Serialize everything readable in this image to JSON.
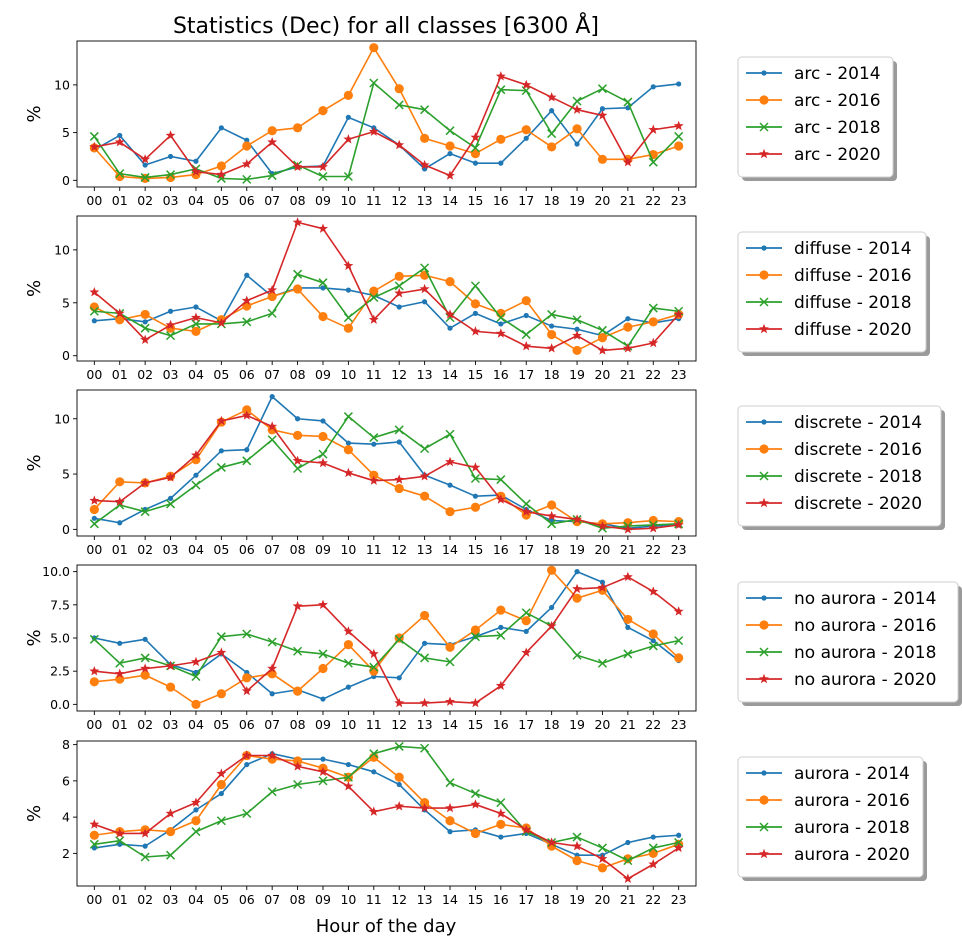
{
  "title": "Statistics (Dec) for all classes [6300 Å]",
  "xlabel": "Hour of the day",
  "colors": {
    "2014": "#1f77b4",
    "2016": "#ff7f0e",
    "2018": "#2ca02c",
    "2020": "#d62728"
  },
  "chart_data": [
    {
      "type": "line",
      "class": "arc",
      "ylabel": "%",
      "ylim": [
        -0.7,
        14.6
      ],
      "yticks": [
        {
          "v": 0,
          "label": "0"
        },
        {
          "v": 5,
          "label": "5"
        },
        {
          "v": 10,
          "label": "10"
        }
      ],
      "x": [
        "00",
        "01",
        "02",
        "03",
        "04",
        "05",
        "06",
        "07",
        "08",
        "09",
        "10",
        "11",
        "12",
        "13",
        "14",
        "15",
        "16",
        "17",
        "18",
        "19",
        "20",
        "21",
        "22",
        "23"
      ],
      "legend": "right",
      "series": [
        {
          "name": "arc - 2014",
          "year": "2014",
          "marker": "dot",
          "values": [
            3.2,
            4.7,
            1.6,
            2.5,
            2.0,
            5.5,
            4.2,
            0.7,
            1.4,
            1.5,
            6.6,
            5.5,
            3.7,
            1.2,
            2.8,
            1.8,
            1.8,
            4.4,
            7.3,
            3.8,
            7.5,
            7.6,
            9.8,
            10.1
          ]
        },
        {
          "name": "arc - 2016",
          "year": "2016",
          "marker": "circle",
          "values": [
            3.4,
            0.4,
            0.2,
            0.3,
            0.6,
            1.5,
            3.6,
            5.2,
            5.5,
            7.3,
            8.9,
            13.9,
            9.6,
            4.4,
            3.6,
            2.8,
            4.3,
            5.3,
            3.5,
            5.4,
            2.2,
            2.2,
            2.7,
            3.6
          ]
        },
        {
          "name": "arc - 2018",
          "year": "2018",
          "marker": "x",
          "values": [
            4.6,
            0.7,
            0.3,
            0.6,
            1.2,
            0.2,
            0.1,
            0.5,
            1.6,
            0.4,
            0.4,
            10.2,
            7.9,
            7.4,
            5.2,
            3.4,
            9.5,
            9.4,
            4.9,
            8.3,
            9.6,
            8.2,
            1.9,
            4.6
          ]
        },
        {
          "name": "arc - 2020",
          "year": "2020",
          "marker": "star",
          "values": [
            3.5,
            4.0,
            2.2,
            4.7,
            0.9,
            0.6,
            1.7,
            4.0,
            1.4,
            1.4,
            4.3,
            5.1,
            3.7,
            1.6,
            0.5,
            4.5,
            10.9,
            10.0,
            8.7,
            7.4,
            6.8,
            1.9,
            5.3,
            5.7
          ]
        }
      ]
    },
    {
      "type": "line",
      "class": "diffuse",
      "ylabel": "%",
      "ylim": [
        -0.5,
        13.2
      ],
      "yticks": [
        {
          "v": 0,
          "label": "0"
        },
        {
          "v": 5,
          "label": "5"
        },
        {
          "v": 10,
          "label": "10"
        }
      ],
      "x": [
        "00",
        "01",
        "02",
        "03",
        "04",
        "05",
        "06",
        "07",
        "08",
        "09",
        "10",
        "11",
        "12",
        "13",
        "14",
        "15",
        "16",
        "17",
        "18",
        "19",
        "20",
        "21",
        "22",
        "23"
      ],
      "legend": "right",
      "series": [
        {
          "name": "diffuse - 2014",
          "year": "2014",
          "marker": "dot",
          "values": [
            3.3,
            3.5,
            3.2,
            4.2,
            4.6,
            3.3,
            7.6,
            5.6,
            6.4,
            6.4,
            6.2,
            5.7,
            4.6,
            5.1,
            2.6,
            4.0,
            3.0,
            3.8,
            2.8,
            2.5,
            1.9,
            3.5,
            3.1,
            3.5
          ]
        },
        {
          "name": "diffuse - 2016",
          "year": "2016",
          "marker": "circle",
          "values": [
            4.6,
            3.4,
            3.9,
            2.6,
            2.3,
            3.4,
            4.7,
            5.6,
            6.3,
            3.7,
            2.6,
            6.1,
            7.5,
            7.6,
            7.0,
            4.9,
            4.0,
            5.2,
            2.0,
            0.5,
            1.7,
            2.7,
            3.2,
            3.9
          ]
        },
        {
          "name": "diffuse - 2018",
          "year": "2018",
          "marker": "x",
          "values": [
            4.2,
            4.0,
            2.6,
            1.9,
            3.0,
            3.0,
            3.2,
            4.0,
            7.7,
            6.9,
            3.6,
            5.5,
            6.6,
            8.3,
            3.6,
            6.6,
            3.6,
            2.0,
            3.9,
            3.4,
            2.4,
            0.9,
            4.5,
            4.2
          ]
        },
        {
          "name": "diffuse - 2020",
          "year": "2020",
          "marker": "star",
          "values": [
            6.0,
            4.0,
            1.5,
            2.9,
            3.6,
            3.1,
            5.2,
            6.2,
            12.6,
            12.0,
            8.5,
            3.4,
            5.9,
            6.3,
            3.9,
            2.3,
            2.1,
            0.9,
            0.7,
            1.9,
            0.5,
            0.7,
            1.2,
            3.9
          ]
        }
      ]
    },
    {
      "type": "line",
      "class": "discrete",
      "ylabel": "%",
      "ylim": [
        -0.6,
        12.6
      ],
      "yticks": [
        {
          "v": 0,
          "label": "0"
        },
        {
          "v": 5,
          "label": "5"
        },
        {
          "v": 10,
          "label": "10"
        }
      ],
      "x": [
        "00",
        "01",
        "02",
        "03",
        "04",
        "05",
        "06",
        "07",
        "08",
        "09",
        "10",
        "11",
        "12",
        "13",
        "14",
        "15",
        "16",
        "17",
        "18",
        "19",
        "20",
        "21",
        "22",
        "23"
      ],
      "legend": "right",
      "series": [
        {
          "name": "discrete - 2014",
          "year": "2014",
          "marker": "dot",
          "values": [
            1.0,
            0.6,
            1.8,
            2.8,
            4.9,
            7.1,
            7.2,
            12.0,
            10.0,
            9.8,
            7.8,
            7.7,
            7.9,
            4.9,
            4.0,
            3.0,
            3.1,
            1.8,
            0.8,
            0.7,
            0.5,
            0.1,
            0.3,
            0.4
          ]
        },
        {
          "name": "discrete - 2016",
          "year": "2016",
          "marker": "circle",
          "values": [
            1.8,
            4.3,
            4.2,
            4.8,
            6.3,
            9.7,
            10.8,
            9.0,
            8.5,
            8.4,
            7.2,
            4.9,
            3.7,
            3.0,
            1.6,
            2.0,
            3.0,
            1.3,
            2.2,
            0.7,
            0.5,
            0.6,
            0.8,
            0.7
          ]
        },
        {
          "name": "discrete - 2018",
          "year": "2018",
          "marker": "x",
          "values": [
            0.5,
            2.2,
            1.6,
            2.3,
            4.0,
            5.6,
            6.2,
            8.1,
            5.5,
            6.8,
            10.2,
            8.3,
            9.0,
            7.3,
            8.6,
            4.6,
            4.5,
            2.3,
            0.5,
            0.9,
            0.1,
            0.3,
            0.4,
            0.5
          ]
        },
        {
          "name": "discrete - 2020",
          "year": "2020",
          "marker": "star",
          "values": [
            2.6,
            2.5,
            4.2,
            4.7,
            6.7,
            9.8,
            10.3,
            9.3,
            6.2,
            6.0,
            5.1,
            4.4,
            4.5,
            4.8,
            6.1,
            5.6,
            2.7,
            1.6,
            1.2,
            0.9,
            0.3,
            0.0,
            0.1,
            0.4
          ]
        }
      ]
    },
    {
      "type": "line",
      "class": "no aurora",
      "ylabel": "%",
      "ylim": [
        -0.5,
        10.5
      ],
      "yticks": [
        {
          "v": 0,
          "label": "0.0"
        },
        {
          "v": 2.5,
          "label": "2.5"
        },
        {
          "v": 5,
          "label": "5.0"
        },
        {
          "v": 7.5,
          "label": "7.5"
        },
        {
          "v": 10,
          "label": "10.0"
        }
      ],
      "x": [
        "00",
        "01",
        "02",
        "03",
        "04",
        "05",
        "06",
        "07",
        "08",
        "09",
        "10",
        "11",
        "12",
        "13",
        "14",
        "15",
        "16",
        "17",
        "18",
        "19",
        "20",
        "21",
        "22",
        "23"
      ],
      "legend": "right",
      "series": [
        {
          "name": "no aurora - 2014",
          "year": "2014",
          "marker": "dot",
          "values": [
            5.0,
            4.6,
            4.9,
            3.0,
            2.4,
            3.8,
            2.4,
            0.8,
            1.1,
            0.4,
            1.3,
            2.1,
            2.0,
            4.6,
            4.5,
            5.1,
            5.8,
            5.5,
            7.3,
            10.0,
            9.2,
            5.8,
            4.8,
            3.3
          ]
        },
        {
          "name": "no aurora - 2016",
          "year": "2016",
          "marker": "circle",
          "values": [
            1.7,
            1.9,
            2.2,
            1.3,
            0.0,
            0.8,
            2.0,
            2.3,
            1.0,
            2.7,
            4.5,
            2.5,
            5.0,
            6.7,
            4.3,
            5.6,
            7.1,
            6.3,
            10.1,
            8.0,
            8.6,
            6.4,
            5.3,
            3.5
          ]
        },
        {
          "name": "no aurora - 2018",
          "year": "2018",
          "marker": "x",
          "values": [
            4.9,
            3.1,
            3.5,
            2.9,
            2.1,
            5.1,
            5.3,
            4.7,
            4.0,
            3.8,
            3.1,
            2.8,
            4.9,
            3.5,
            3.2,
            5.1,
            5.2,
            6.9,
            5.9,
            3.7,
            3.1,
            3.8,
            4.4,
            4.8
          ]
        },
        {
          "name": "no aurora - 2020",
          "year": "2020",
          "marker": "star",
          "values": [
            2.5,
            2.3,
            2.7,
            2.9,
            3.2,
            3.9,
            1.0,
            2.7,
            7.4,
            7.5,
            5.5,
            3.8,
            0.1,
            0.1,
            0.2,
            0.1,
            1.4,
            3.9,
            5.9,
            8.7,
            8.8,
            9.6,
            8.5,
            7.0
          ]
        }
      ]
    },
    {
      "type": "line",
      "class": "aurora",
      "ylabel": "%",
      "ylim": [
        0.2,
        8.2
      ],
      "yticks": [
        {
          "v": 2,
          "label": "2"
        },
        {
          "v": 4,
          "label": "4"
        },
        {
          "v": 6,
          "label": "6"
        },
        {
          "v": 8,
          "label": "8"
        }
      ],
      "x": [
        "00",
        "01",
        "02",
        "03",
        "04",
        "05",
        "06",
        "07",
        "08",
        "09",
        "10",
        "11",
        "12",
        "13",
        "14",
        "15",
        "16",
        "17",
        "18",
        "19",
        "20",
        "21",
        "22",
        "23"
      ],
      "legend": "right",
      "series": [
        {
          "name": "aurora - 2014",
          "year": "2014",
          "marker": "dot",
          "values": [
            2.3,
            2.5,
            2.4,
            3.3,
            4.4,
            5.3,
            6.9,
            7.5,
            7.2,
            7.2,
            6.9,
            6.5,
            5.8,
            4.4,
            3.2,
            3.3,
            2.9,
            3.1,
            2.5,
            1.9,
            1.9,
            2.6,
            2.9,
            3.0
          ]
        },
        {
          "name": "aurora - 2016",
          "year": "2016",
          "marker": "circle",
          "values": [
            3.0,
            3.2,
            3.3,
            3.2,
            3.8,
            5.8,
            7.4,
            7.2,
            7.1,
            6.7,
            6.2,
            7.3,
            6.2,
            4.8,
            3.8,
            3.1,
            3.6,
            3.4,
            2.4,
            1.6,
            1.2,
            1.7,
            2.0,
            2.5
          ]
        },
        {
          "name": "aurora - 2018",
          "year": "2018",
          "marker": "x",
          "values": [
            2.5,
            2.7,
            1.8,
            1.9,
            3.2,
            3.8,
            4.2,
            5.4,
            5.8,
            6.0,
            6.2,
            7.5,
            7.9,
            7.8,
            5.9,
            5.3,
            4.8,
            3.2,
            2.6,
            2.9,
            2.3,
            1.6,
            2.3,
            2.6
          ]
        },
        {
          "name": "aurora - 2020",
          "year": "2020",
          "marker": "star",
          "values": [
            3.6,
            3.1,
            3.1,
            4.2,
            4.8,
            6.4,
            7.4,
            7.4,
            6.8,
            6.5,
            5.7,
            4.3,
            4.6,
            4.5,
            4.5,
            4.7,
            4.2,
            3.3,
            2.6,
            2.4,
            1.7,
            0.6,
            1.4,
            2.3
          ]
        }
      ]
    }
  ]
}
